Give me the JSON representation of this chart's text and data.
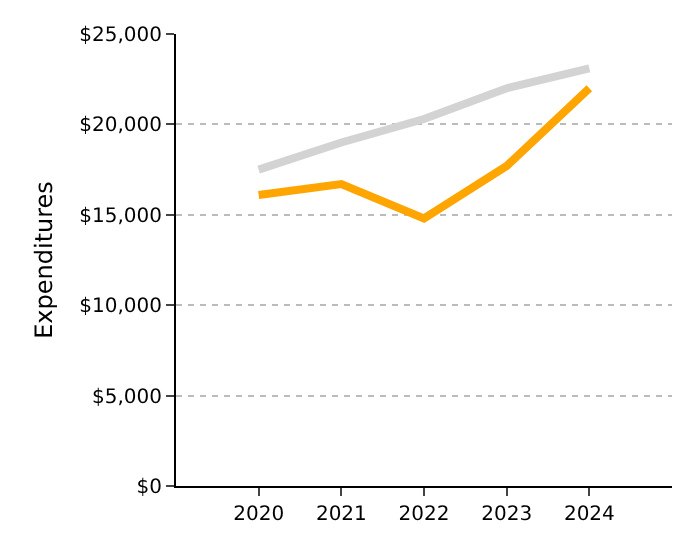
{
  "chart_data": {
    "type": "line",
    "ylabel": "Expenditures",
    "x": [
      2020,
      2021,
      2022,
      2023,
      2024
    ],
    "xlim": [
      2019,
      2025
    ],
    "xticks": [
      2020,
      2021,
      2022,
      2023,
      2024
    ],
    "ylim": [
      0,
      25000
    ],
    "yticks": [
      {
        "value": 0,
        "label": "$0"
      },
      {
        "value": 5000,
        "label": "$5,000"
      },
      {
        "value": 10000,
        "label": "$10,000"
      },
      {
        "value": 15000,
        "label": "$15,000"
      },
      {
        "value": 20000,
        "label": "$20,000"
      },
      {
        "value": 25000,
        "label": "$25,000"
      }
    ],
    "grid": "y",
    "marker": "none",
    "line_style": "solid",
    "series": [
      {
        "color": "#d3d3d3",
        "values": [
          17500,
          19000,
          20300,
          22000,
          23100
        ]
      },
      {
        "color": "#ffa500",
        "values": [
          16100,
          16700,
          14800,
          17700,
          22000
        ]
      }
    ]
  }
}
